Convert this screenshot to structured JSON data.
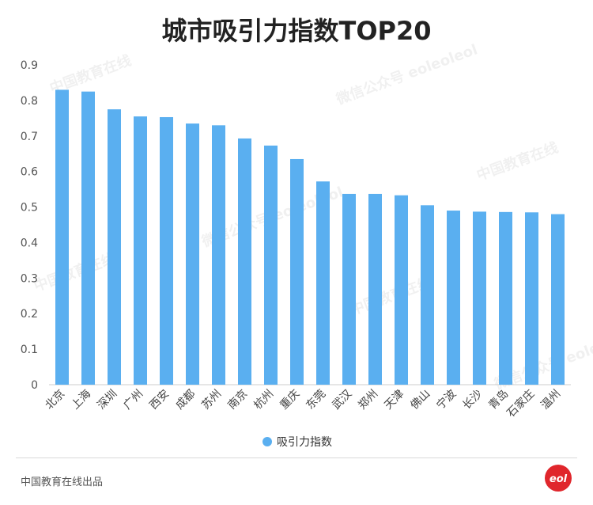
{
  "title": "城市吸引力指数TOP20",
  "footer": {
    "source": "中国教育在线出品"
  },
  "watermark": {
    "line1": "中国教育在线",
    "line2": "微信公众号 eoleoleol"
  },
  "colors": {
    "bar": "#5aaff0",
    "axis": "#cccccc",
    "text": "#555555"
  },
  "chart_data": {
    "type": "bar",
    "categories": [
      "北京",
      "上海",
      "深圳",
      "广州",
      "西安",
      "成都",
      "苏州",
      "南京",
      "杭州",
      "重庆",
      "东莞",
      "武汉",
      "郑州",
      "天津",
      "佛山",
      "宁波",
      "长沙",
      "青岛",
      "石家庄",
      "温州"
    ],
    "series": [
      {
        "name": "吸引力指数",
        "values": [
          0.83,
          0.825,
          0.775,
          0.755,
          0.753,
          0.735,
          0.73,
          0.693,
          0.673,
          0.635,
          0.572,
          0.537,
          0.537,
          0.533,
          0.505,
          0.49,
          0.487,
          0.486,
          0.485,
          0.48
        ]
      }
    ],
    "ylim": [
      0,
      0.9
    ],
    "yticks": [
      "0",
      "0.1",
      "0.2",
      "0.3",
      "0.4",
      "0.5",
      "0.6",
      "0.7",
      "0.8",
      "0.9"
    ],
    "legend": "bottom-center",
    "grid": false
  }
}
